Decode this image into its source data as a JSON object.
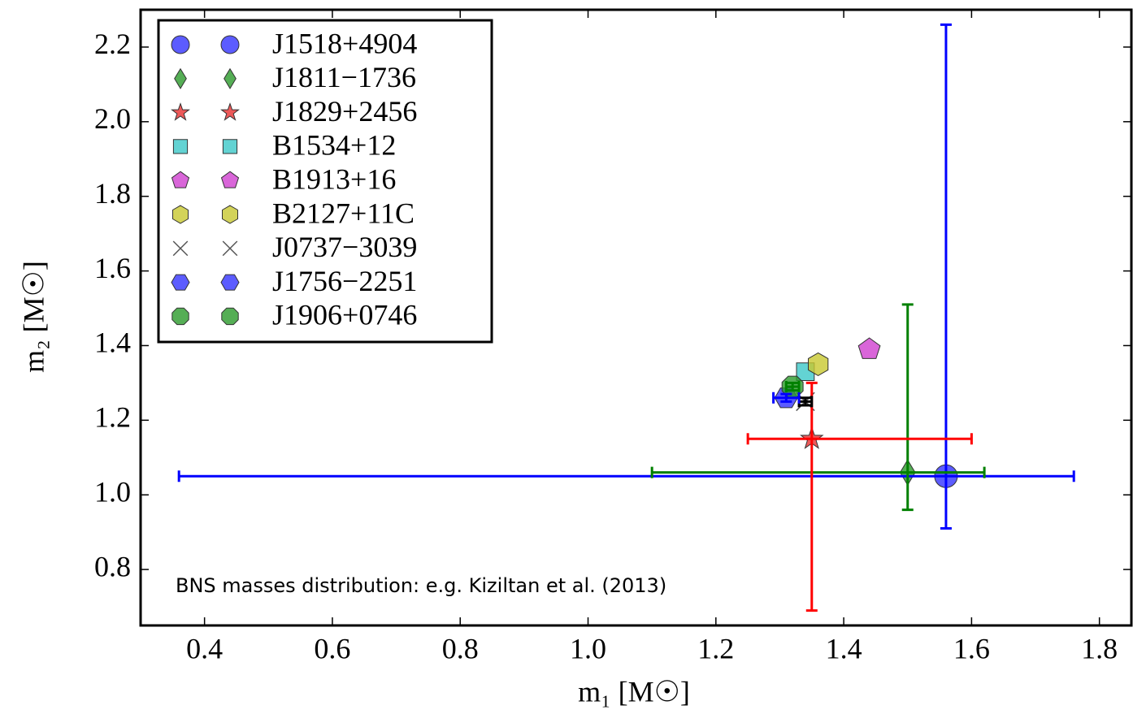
{
  "chart_data": {
    "type": "scatter",
    "xlabel": "m₁  [M☉]",
    "ylabel": "m₂  [M☉]",
    "annotation": "BNS masses distribution: e.g. Kiziltan et al. (2013)",
    "xlim": [
      0.3,
      1.85
    ],
    "ylim": [
      0.65,
      2.3
    ],
    "xticks": [
      0.4,
      0.6,
      0.8,
      {
        "value": 1,
        "label": "1.0"
      },
      1.2,
      1.4,
      1.6,
      1.8
    ],
    "yticks": [
      0.8,
      {
        "value": 1,
        "label": "1.0"
      },
      1.2,
      1.4,
      1.6,
      1.8,
      {
        "value": 2,
        "label": "2.0"
      },
      2.2
    ],
    "legend": "upper left",
    "series": [
      {
        "name": "J1518+4904",
        "color": "#3333ff",
        "marker": "circle",
        "x": [
          1.56
        ],
        "y": [
          1.05
        ],
        "xerr_minus": [
          1.2
        ],
        "xerr_plus": [
          0.2
        ],
        "yerr_minus": [
          0.14
        ],
        "yerr_plus": [
          1.21
        ],
        "err_color": "#0000ff"
      },
      {
        "name": "J1811−1736",
        "color": "#2a9a2a",
        "marker": "diamond",
        "x": [
          1.5
        ],
        "y": [
          1.06
        ],
        "xerr_minus": [
          0.4
        ],
        "xerr_plus": [
          0.12
        ],
        "yerr_minus": [
          0.1
        ],
        "yerr_plus": [
          0.45
        ],
        "err_color": "#008000"
      },
      {
        "name": "J1829+2456",
        "color": "#e83030",
        "marker": "star",
        "x": [
          1.35
        ],
        "y": [
          1.15
        ],
        "xerr_minus": [
          0.1
        ],
        "xerr_plus": [
          0.25
        ],
        "yerr_minus": [
          0.46
        ],
        "yerr_plus": [
          0.15
        ],
        "err_color": "#ff0000"
      },
      {
        "name": "B1534+12",
        "color": "#3cc8c8",
        "marker": "square",
        "x": [
          1.34
        ],
        "y": [
          1.33
        ]
      },
      {
        "name": "B1913+16",
        "color": "#d040d0",
        "marker": "pentagon",
        "x": [
          1.44
        ],
        "y": [
          1.39
        ]
      },
      {
        "name": "B2127+11C",
        "color": "#c8c830",
        "marker": "hexagon",
        "x": [
          1.36
        ],
        "y": [
          1.35
        ]
      },
      {
        "name": "J0737−3039",
        "color": "#555555",
        "marker": "x",
        "x": [
          1.34
        ],
        "y": [
          1.25
        ],
        "xerr_minus": [
          0.01
        ],
        "xerr_plus": [
          0.01
        ],
        "yerr_minus": [
          0.01
        ],
        "yerr_plus": [
          0.01
        ],
        "err_color": "#000000"
      },
      {
        "name": "J1756−2251",
        "color": "#3333ff",
        "marker": "hexagon2",
        "x": [
          1.31
        ],
        "y": [
          1.26
        ],
        "xerr_minus": [
          0.02
        ],
        "xerr_plus": [
          0.02
        ],
        "yerr_minus": [
          0.01
        ],
        "yerr_plus": [
          0.01
        ],
        "err_color": "#0000ff"
      },
      {
        "name": "J1906+0746",
        "color": "#2a9a2a",
        "marker": "octagon",
        "x": [
          1.32
        ],
        "y": [
          1.29
        ],
        "xerr_minus": [
          0.01
        ],
        "xerr_plus": [
          0.01
        ],
        "yerr_minus": [
          0.01
        ],
        "yerr_plus": [
          0.01
        ],
        "err_color": "#008000"
      }
    ]
  }
}
